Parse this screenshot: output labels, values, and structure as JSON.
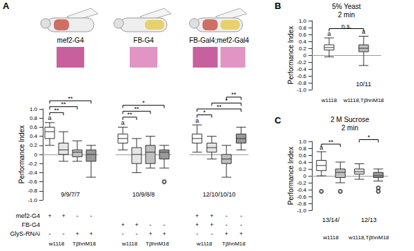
{
  "chart_data": [
    {
      "type": "boxplot",
      "panel": "A",
      "title": "mef2-G4",
      "y_label": "Performance Index",
      "categories": [
        null,
        null,
        null,
        null
      ],
      "values": [
        [
          0.2,
          0.35,
          0.5,
          0.6,
          0.7
        ],
        [
          -0.15,
          0.0,
          0.1,
          0.25,
          0.5
        ],
        [
          -0.15,
          -0.05,
          0.05,
          0.1,
          0.3
        ],
        [
          -0.5,
          -0.15,
          0.0,
          0.1,
          0.2
        ]
      ],
      "outliers": [
        [],
        [],
        [],
        []
      ],
      "colors": [
        "#ffffff",
        "#e6e6e6",
        "#bfbfbf",
        "#999999"
      ],
      "letters": [
        "a",
        null,
        null,
        null
      ],
      "annotations": [
        {
          "text": "**",
          "from": 0,
          "to": 1
        },
        {
          "text": "**",
          "from": 0,
          "to": 2
        },
        {
          "text": "**",
          "from": 0,
          "to": 3
        }
      ],
      "n_labels": [
        {
          "text": "9/9/7/7",
          "from": 0,
          "to": 3
        }
      ],
      "group_labels": [
        {
          "text": "w1118",
          "from": 0,
          "to": 1
        },
        {
          "text": "TβhnM18",
          "from": 2,
          "to": 3
        }
      ],
      "row_labels": [
        "mef2-G4",
        "FB-G4",
        "GlyS-RNAi"
      ],
      "rows": [
        [
          "+",
          "+",
          "-",
          "-"
        ],
        null,
        [
          "-",
          "-",
          "+",
          "+"
        ]
      ],
      "ylim": [
        -1,
        1
      ],
      "yticks": [
        {
          "value": -1,
          "label": "-1.0"
        },
        -0.8,
        -0.6,
        -0.4,
        -0.2,
        0,
        0.2,
        0.4,
        0.6,
        0.8,
        {
          "value": 1,
          "label": "1.0"
        }
      ]
    },
    {
      "type": "boxplot",
      "title": "FB-G4",
      "tick_labels": false,
      "categories": [
        null,
        null,
        null,
        null
      ],
      "values": [
        [
          0.1,
          0.25,
          0.35,
          0.45,
          0.6
        ],
        [
          -0.4,
          -0.2,
          0.0,
          0.15,
          0.35
        ],
        [
          -0.3,
          -0.2,
          0.05,
          0.2,
          0.4
        ],
        [
          -0.3,
          -0.1,
          0.05,
          0.1,
          0.2
        ]
      ],
      "outliers": [
        [],
        [],
        [],
        [
          -0.6
        ]
      ],
      "colors": [
        "#ffffff",
        "#e6e6e6",
        "#bfbfbf",
        "#999999"
      ],
      "letters": [
        "a",
        null,
        null,
        null
      ],
      "annotations": [
        {
          "text": "**",
          "from": 0,
          "to": 1
        },
        {
          "text": "**",
          "from": 0,
          "to": 2
        },
        {
          "text": "*",
          "from": 0,
          "to": 3
        }
      ],
      "n_labels": [
        {
          "text": "10/9/8/8",
          "from": 0,
          "to": 3
        }
      ],
      "group_labels": [
        {
          "text": "w1118",
          "from": 0,
          "to": 1
        },
        {
          "text": "TβhnM18",
          "from": 2,
          "to": 3
        }
      ],
      "rows": [
        null,
        [
          "+",
          "+",
          "-",
          "-"
        ],
        [
          "-",
          "-",
          "+",
          "+"
        ]
      ],
      "ylim": [
        -1,
        1
      ],
      "yticks": [
        {
          "value": -1,
          "label": "-1.0"
        },
        -0.8,
        -0.6,
        -0.4,
        -0.2,
        0,
        0.2,
        0.4,
        0.6,
        0.8,
        {
          "value": 1,
          "label": "1.0"
        }
      ]
    },
    {
      "type": "boxplot",
      "title": "FB-Gal4;mef2-Gal4",
      "tick_labels": false,
      "categories": [
        null,
        null,
        null,
        null
      ],
      "values": [
        [
          0.05,
          0.25,
          0.35,
          0.45,
          0.65
        ],
        [
          -0.1,
          0.05,
          0.15,
          0.25,
          0.4
        ],
        [
          -0.5,
          -0.2,
          -0.1,
          0.0,
          0.2
        ],
        [
          0.1,
          0.25,
          0.35,
          0.45,
          0.6
        ]
      ],
      "outliers": [
        [],
        [],
        [],
        []
      ],
      "colors": [
        "#ffffff",
        "#e6e6e6",
        "#bfbfbf",
        "#999999"
      ],
      "letters": [
        "a",
        null,
        null,
        null
      ],
      "annotations": [
        {
          "text": "*",
          "from": 0,
          "to": 1
        },
        {
          "text": "**",
          "from": 0,
          "to": 3
        },
        {
          "text": "*",
          "from": 1,
          "to": 3
        },
        {
          "text": "**",
          "from": 2,
          "to": 3
        }
      ],
      "n_labels": [
        {
          "text": "12/10/10/10",
          "from": 0,
          "to": 3
        }
      ],
      "group_labels": [
        {
          "text": "w1118",
          "from": 0,
          "to": 1
        },
        {
          "text": "TβhnM18",
          "from": 2,
          "to": 3
        }
      ],
      "rows": [
        [
          "+",
          "+",
          "-",
          "-"
        ],
        [
          "+",
          "+",
          "-",
          "-"
        ],
        [
          "-",
          "-",
          "+",
          "+"
        ]
      ],
      "ylim": [
        -1,
        1
      ],
      "yticks": [
        {
          "value": -1,
          "label": "-1.0"
        },
        -0.8,
        -0.6,
        -0.4,
        -0.2,
        0,
        0.2,
        0.4,
        0.6,
        0.8,
        {
          "value": 1,
          "label": "1.0"
        }
      ]
    },
    {
      "type": "boxplot",
      "panel": "B",
      "title": "5% Yeast",
      "subtitle": "2 min",
      "y_label": "Performance Index",
      "categories": [
        null,
        null
      ],
      "values": [
        [
          -0.05,
          0.15,
          0.22,
          0.3,
          0.5
        ],
        [
          -0.3,
          0.1,
          0.2,
          0.3,
          0.55
        ]
      ],
      "outliers": [
        [],
        []
      ],
      "colors": [
        "#ffffff",
        "#bfbfbf"
      ],
      "letters": [
        "a",
        "a"
      ],
      "annotations": [
        {
          "text": "n.s.",
          "from": 0,
          "to": 1
        }
      ],
      "n_labels": [
        {
          "text": "10/11",
          "from": 1,
          "to": 1
        }
      ],
      "group_labels": [
        {
          "text": "w1118",
          "from": 0,
          "to": 0
        },
        {
          "text": "w1118,TβhnM18",
          "from": 1,
          "to": 1
        }
      ],
      "ylim": [
        -1,
        1
      ],
      "yticks": [
        {
          "value": -1,
          "label": "-1.0"
        },
        -0.8,
        -0.6,
        -0.4,
        -0.2,
        0,
        0.2,
        0.4,
        0.6,
        0.8,
        {
          "value": 1,
          "label": "1.0"
        }
      ]
    },
    {
      "type": "boxplot",
      "panel": "C",
      "title": "2 M Sucrose",
      "subtitle": "2 min",
      "y_label": "Performance Index",
      "categories": [
        null,
        null,
        null,
        null
      ],
      "values": [
        [
          0.0,
          0.15,
          0.3,
          0.45,
          0.7
        ],
        [
          -0.2,
          -0.05,
          0.1,
          0.2,
          0.4
        ],
        [
          -0.1,
          0.05,
          0.12,
          0.2,
          0.35
        ],
        [
          -0.15,
          -0.05,
          0.0,
          0.1,
          0.2
        ]
      ],
      "outliers": [
        [
          -0.45
        ],
        [
          -0.45
        ],
        [],
        [
          -0.35,
          -0.45
        ]
      ],
      "colors": [
        "#ffffff",
        "#bfbfbf",
        "#e6e6e6",
        "#999999"
      ],
      "letters": [
        "a",
        null,
        null,
        null
      ],
      "annotations": [
        {
          "text": "**",
          "from": 0,
          "to": 1
        },
        {
          "text": "*",
          "from": 2,
          "to": 3
        }
      ],
      "n_labels": [
        {
          "text": "13/14/",
          "from": 0,
          "to": 1
        },
        {
          "text": "12/13",
          "from": 2,
          "to": 3
        }
      ],
      "group_labels": [
        {
          "text": "w1118",
          "from": 0,
          "to": 1
        },
        {
          "text": "w1118,TβhnM18",
          "from": 2,
          "to": 3
        }
      ],
      "ylim": [
        -1,
        1
      ],
      "yticks": [
        {
          "value": -1,
          "label": "-1.0"
        },
        -0.8,
        -0.6,
        -0.4,
        -0.2,
        0,
        0.2,
        0.4,
        0.6,
        0.8,
        {
          "value": 1,
          "label": "1.0"
        }
      ]
    }
  ]
}
